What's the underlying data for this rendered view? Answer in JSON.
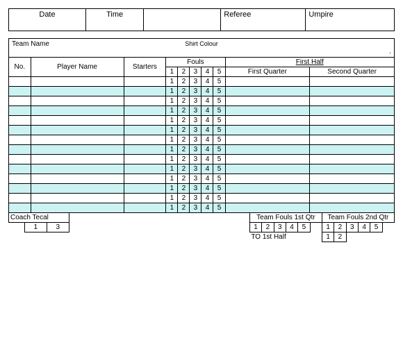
{
  "info": {
    "date_label": "Date",
    "time_label": "Time",
    "referee_label": "Referee",
    "umpire_label": "Umpire"
  },
  "team": {
    "name_label": "Team Name",
    "shirt_label": "Shirt Colour"
  },
  "headers": {
    "no": "No.",
    "player_name": "Player Name",
    "starters": "Starters",
    "fouls": "Fouls",
    "first_half": "First Half",
    "first_quarter": "First Quarter",
    "second_quarter": "Second Quarter"
  },
  "foul_numbers": [
    "1",
    "2",
    "3",
    "4",
    "5"
  ],
  "row_count": 14,
  "row_stripe_color": "#ccf2f2",
  "footer": {
    "coach_tecal": "Coach Tecal",
    "coach_boxes": [
      "1",
      "3"
    ],
    "team_fouls_1q": "Team Fouls 1st Qtr",
    "team_fouls_2q": "Team Fouls 2nd Qtr",
    "to_1st_half": "TO 1st Half",
    "tf_boxes": [
      "1",
      "2",
      "3",
      "4",
      "5"
    ],
    "to_boxes": [
      "1",
      "2"
    ]
  }
}
